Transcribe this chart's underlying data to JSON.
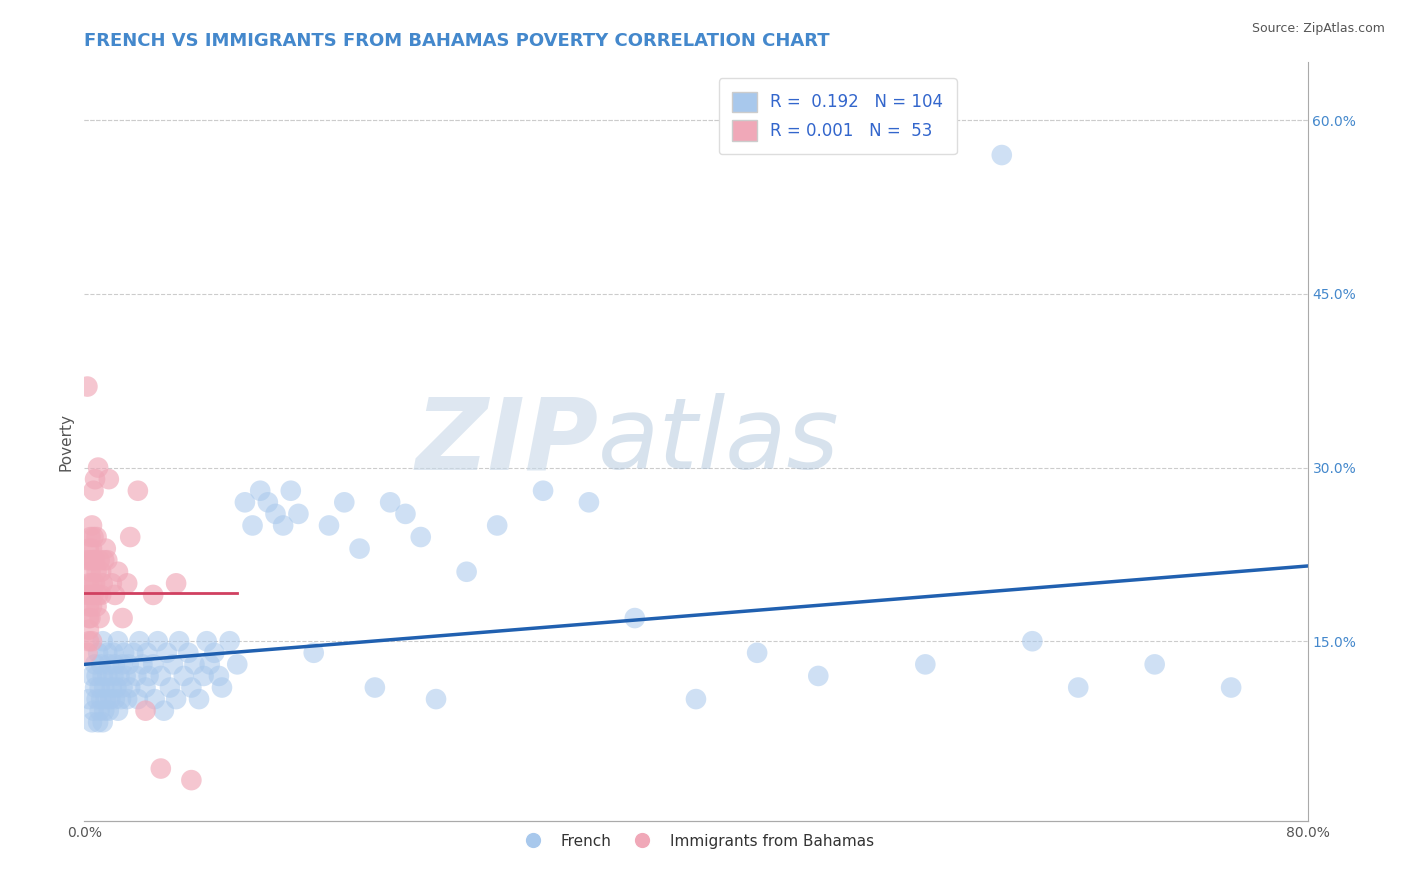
{
  "title": "FRENCH VS IMMIGRANTS FROM BAHAMAS POVERTY CORRELATION CHART",
  "source_text": "Source: ZipAtlas.com",
  "ylabel": "Poverty",
  "watermark_zip": "ZIP",
  "watermark_atlas": "atlas",
  "xlim": [
    0.0,
    0.8
  ],
  "ylim": [
    -0.005,
    0.65
  ],
  "xtick_positions": [
    0.0,
    0.1,
    0.2,
    0.3,
    0.4,
    0.5,
    0.6,
    0.7,
    0.8
  ],
  "xticklabels": [
    "0.0%",
    "",
    "",
    "",
    "",
    "",
    "",
    "",
    "80.0%"
  ],
  "yticks_right": [
    0.15,
    0.3,
    0.45,
    0.6
  ],
  "ytick_right_labels": [
    "15.0%",
    "30.0%",
    "45.0%",
    "60.0%"
  ],
  "blue_color": "#A8C8EC",
  "pink_color": "#F0A8B8",
  "trend_blue": "#2060B0",
  "trend_pink": "#D04060",
  "grid_color": "#CCCCCC",
  "title_color": "#4488CC",
  "legend_text_color": "#3366CC",
  "french_x": [
    0.003,
    0.005,
    0.005,
    0.006,
    0.007,
    0.007,
    0.008,
    0.008,
    0.009,
    0.009,
    0.01,
    0.01,
    0.011,
    0.011,
    0.012,
    0.012,
    0.012,
    0.013,
    0.013,
    0.014,
    0.015,
    0.015,
    0.016,
    0.016,
    0.017,
    0.018,
    0.019,
    0.019,
    0.02,
    0.02,
    0.021,
    0.022,
    0.022,
    0.023,
    0.024,
    0.025,
    0.025,
    0.026,
    0.027,
    0.028,
    0.029,
    0.03,
    0.032,
    0.034,
    0.035,
    0.036,
    0.038,
    0.04,
    0.041,
    0.042,
    0.045,
    0.046,
    0.048,
    0.05,
    0.052,
    0.054,
    0.056,
    0.058,
    0.06,
    0.062,
    0.065,
    0.068,
    0.07,
    0.072,
    0.075,
    0.078,
    0.08,
    0.082,
    0.085,
    0.088,
    0.09,
    0.095,
    0.1,
    0.105,
    0.11,
    0.115,
    0.12,
    0.125,
    0.13,
    0.135,
    0.14,
    0.15,
    0.16,
    0.17,
    0.18,
    0.19,
    0.2,
    0.21,
    0.22,
    0.23,
    0.25,
    0.27,
    0.3,
    0.33,
    0.36,
    0.4,
    0.44,
    0.48,
    0.55,
    0.6,
    0.62,
    0.65,
    0.7,
    0.75
  ],
  "french_y": [
    0.1,
    0.08,
    0.12,
    0.09,
    0.11,
    0.13,
    0.1,
    0.12,
    0.08,
    0.14,
    0.11,
    0.09,
    0.1,
    0.13,
    0.12,
    0.08,
    0.15,
    0.09,
    0.11,
    0.1,
    0.12,
    0.14,
    0.09,
    0.13,
    0.1,
    0.11,
    0.12,
    0.14,
    0.1,
    0.13,
    0.11,
    0.09,
    0.15,
    0.12,
    0.1,
    0.13,
    0.11,
    0.14,
    0.12,
    0.1,
    0.13,
    0.11,
    0.14,
    0.12,
    0.1,
    0.15,
    0.13,
    0.11,
    0.14,
    0.12,
    0.13,
    0.1,
    0.15,
    0.12,
    0.09,
    0.14,
    0.11,
    0.13,
    0.1,
    0.15,
    0.12,
    0.14,
    0.11,
    0.13,
    0.1,
    0.12,
    0.15,
    0.13,
    0.14,
    0.12,
    0.11,
    0.15,
    0.13,
    0.27,
    0.25,
    0.28,
    0.27,
    0.26,
    0.25,
    0.28,
    0.26,
    0.14,
    0.25,
    0.27,
    0.23,
    0.11,
    0.27,
    0.26,
    0.24,
    0.1,
    0.21,
    0.25,
    0.28,
    0.27,
    0.17,
    0.1,
    0.14,
    0.12,
    0.13,
    0.57,
    0.15,
    0.11,
    0.13,
    0.11
  ],
  "bahamas_x": [
    0.002,
    0.002,
    0.002,
    0.002,
    0.003,
    0.003,
    0.003,
    0.003,
    0.003,
    0.003,
    0.004,
    0.004,
    0.004,
    0.004,
    0.004,
    0.005,
    0.005,
    0.005,
    0.005,
    0.005,
    0.006,
    0.006,
    0.006,
    0.006,
    0.007,
    0.007,
    0.007,
    0.008,
    0.008,
    0.008,
    0.009,
    0.009,
    0.01,
    0.01,
    0.011,
    0.011,
    0.012,
    0.013,
    0.014,
    0.015,
    0.016,
    0.018,
    0.02,
    0.022,
    0.025,
    0.028,
    0.03,
    0.035,
    0.04,
    0.045,
    0.05,
    0.06,
    0.07
  ],
  "bahamas_y": [
    0.37,
    0.14,
    0.19,
    0.22,
    0.17,
    0.2,
    0.15,
    0.23,
    0.16,
    0.18,
    0.24,
    0.21,
    0.19,
    0.22,
    0.17,
    0.2,
    0.25,
    0.18,
    0.23,
    0.15,
    0.28,
    0.22,
    0.19,
    0.24,
    0.2,
    0.22,
    0.29,
    0.18,
    0.24,
    0.21,
    0.19,
    0.3,
    0.22,
    0.17,
    0.19,
    0.21,
    0.2,
    0.22,
    0.23,
    0.22,
    0.29,
    0.2,
    0.19,
    0.21,
    0.17,
    0.2,
    0.24,
    0.28,
    0.09,
    0.19,
    0.04,
    0.2,
    0.03
  ],
  "title_fontsize": 13,
  "axis_label_fontsize": 11,
  "tick_fontsize": 10
}
